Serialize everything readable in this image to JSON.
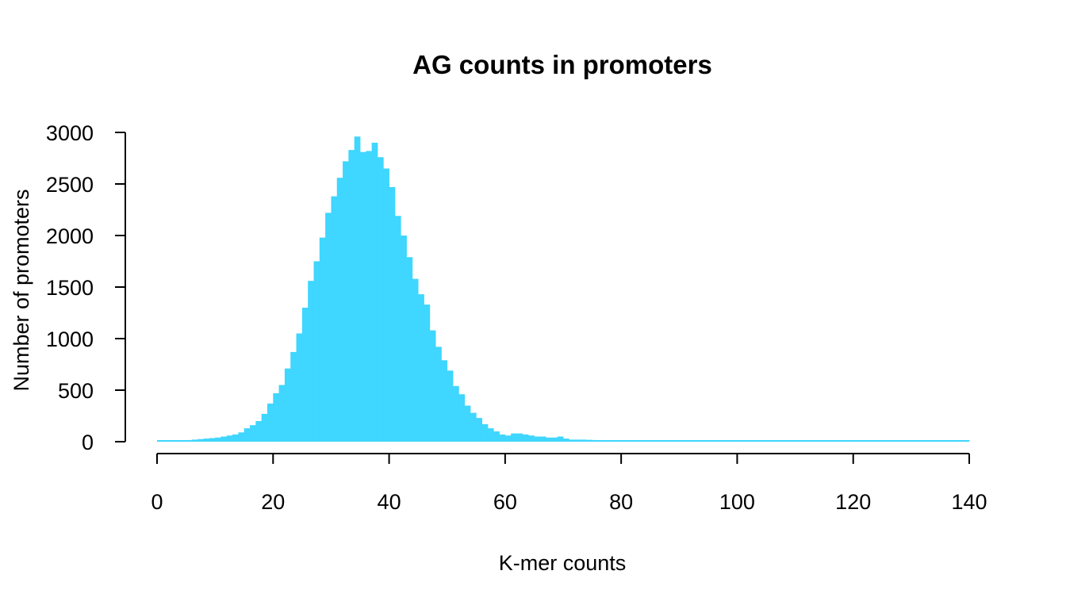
{
  "chart_data": {
    "type": "bar",
    "title": "AG counts in promoters",
    "xlabel": "K-mer counts",
    "ylabel": "Number of promoters",
    "xlim": [
      0,
      140
    ],
    "ylim": [
      0,
      3000
    ],
    "x_ticks": [
      0,
      20,
      40,
      60,
      80,
      100,
      120,
      140
    ],
    "y_ticks": [
      0,
      500,
      1000,
      1500,
      2000,
      2500,
      3000
    ],
    "grid": false,
    "bar_color": "#3fd6ff",
    "bin_width": 1,
    "bin_starts": [
      0,
      1,
      2,
      3,
      4,
      5,
      6,
      7,
      8,
      9,
      10,
      11,
      12,
      13,
      14,
      15,
      16,
      17,
      18,
      19,
      20,
      21,
      22,
      23,
      24,
      25,
      26,
      27,
      28,
      29,
      30,
      31,
      32,
      33,
      34,
      35,
      36,
      37,
      38,
      39,
      40,
      41,
      42,
      43,
      44,
      45,
      46,
      47,
      48,
      49,
      50,
      51,
      52,
      53,
      54,
      55,
      56,
      57,
      58,
      59,
      60,
      61,
      62,
      63,
      64,
      65,
      66,
      67,
      68,
      69,
      70,
      71,
      72,
      73,
      74,
      75,
      76,
      77,
      78,
      79,
      80,
      81,
      82,
      83,
      84,
      85,
      86,
      87,
      88,
      89,
      90,
      91,
      92,
      93,
      94,
      95,
      96,
      97,
      98,
      99,
      100,
      101,
      102,
      103,
      104,
      105,
      106,
      107,
      108,
      109,
      110,
      111,
      112,
      113,
      114,
      115,
      116,
      117,
      118,
      119,
      120,
      121,
      122,
      123,
      124,
      125,
      126,
      127,
      128,
      129,
      130,
      131,
      132,
      133,
      134,
      135,
      136,
      137,
      138,
      139
    ],
    "values": [
      10,
      10,
      10,
      12,
      14,
      16,
      20,
      25,
      30,
      35,
      40,
      50,
      60,
      70,
      90,
      130,
      160,
      200,
      270,
      370,
      470,
      550,
      710,
      870,
      1050,
      1300,
      1560,
      1750,
      1980,
      2220,
      2380,
      2560,
      2720,
      2830,
      2960,
      2810,
      2820,
      2900,
      2760,
      2650,
      2470,
      2190,
      2000,
      1790,
      1580,
      1430,
      1330,
      1080,
      920,
      790,
      690,
      540,
      460,
      350,
      280,
      230,
      170,
      130,
      100,
      70,
      60,
      80,
      80,
      70,
      60,
      50,
      50,
      40,
      40,
      50,
      30,
      20,
      20,
      20,
      18,
      16,
      15,
      14,
      13,
      12,
      12,
      11,
      11,
      10,
      10,
      10,
      9,
      9,
      9,
      9,
      8,
      8,
      8,
      8,
      8,
      8,
      8,
      7,
      7,
      7,
      7,
      7,
      7,
      7,
      7,
      6,
      6,
      6,
      6,
      6,
      6,
      6,
      6,
      6,
      6,
      6,
      6,
      6,
      5,
      5,
      5,
      5,
      5,
      5,
      5,
      5,
      5,
      5,
      5,
      5,
      5,
      5,
      5,
      5,
      5,
      5,
      5,
      5,
      5,
      5,
      5,
      5,
      5,
      5,
      5,
      5
    ]
  }
}
